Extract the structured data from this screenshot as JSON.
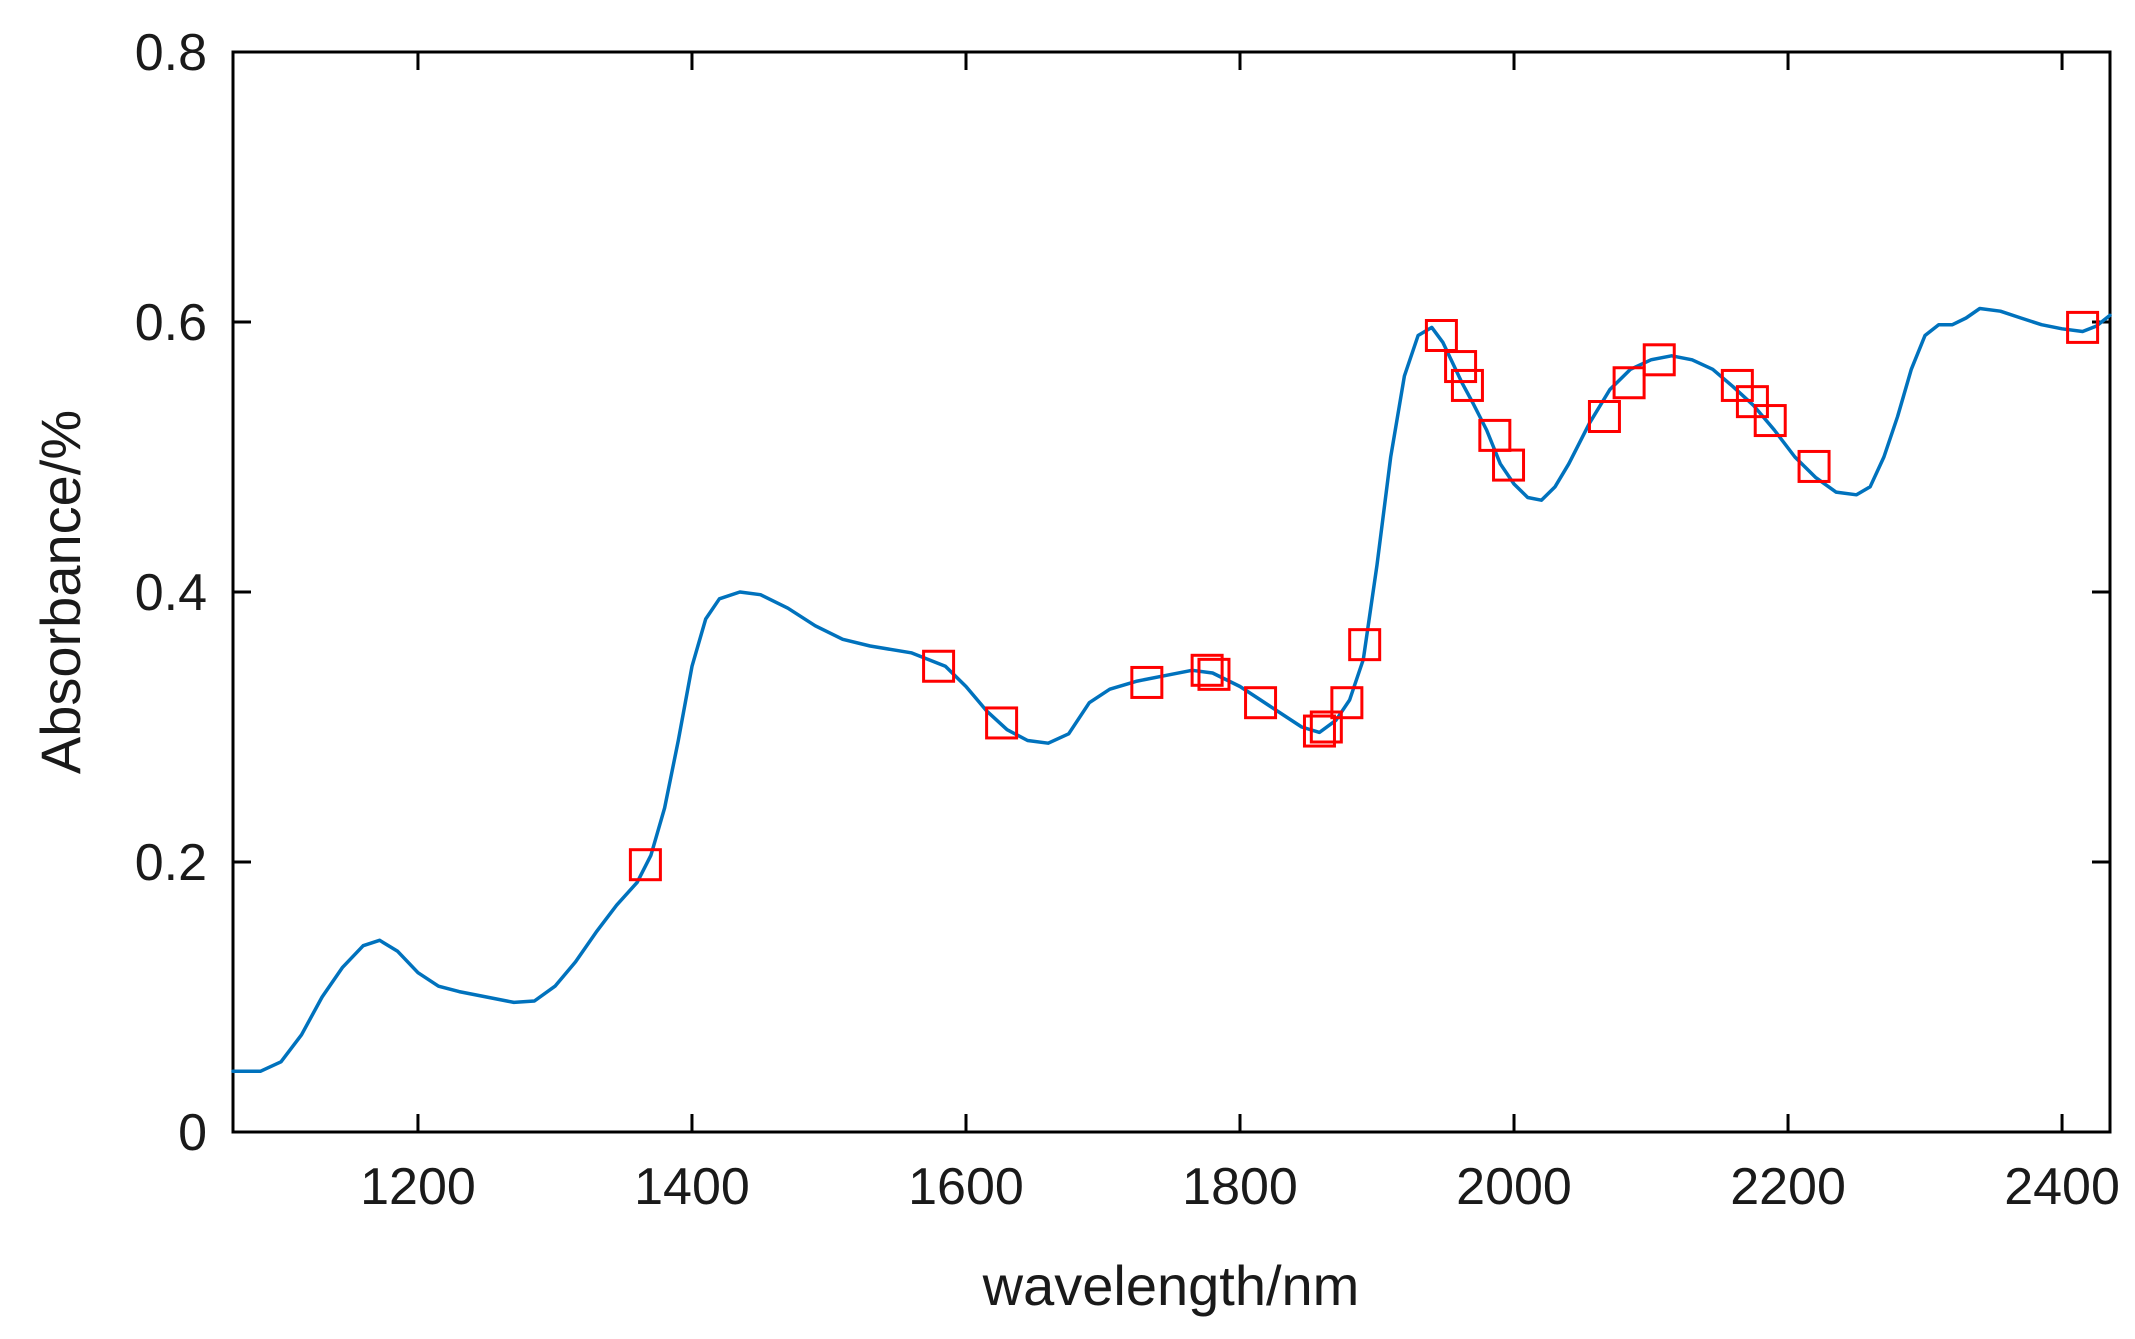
{
  "chart_data": {
    "type": "line",
    "xlabel": "wavelength/nm",
    "ylabel": "Absorbance/%",
    "xlim": [
      1065,
      2435
    ],
    "ylim": [
      0,
      0.8
    ],
    "x_ticks": [
      1200,
      1400,
      1600,
      1800,
      2000,
      2200,
      2400
    ],
    "x_tick_labels": [
      "1200",
      "1400",
      "1600",
      "1800",
      "2000",
      "2200",
      "2400"
    ],
    "y_ticks": [
      0,
      0.2,
      0.4,
      0.6,
      0.8
    ],
    "y_tick_labels": [
      "0",
      "0.2",
      "0.4",
      "0.6",
      "0.8"
    ],
    "grid": false,
    "colors": {
      "spectrum": "#0072BD",
      "markers": "#FF0000",
      "axes": "#000000"
    },
    "series": [
      {
        "type": "line",
        "x": [
          1065,
          1085,
          1100,
          1115,
          1130,
          1145,
          1160,
          1172,
          1185,
          1200,
          1215,
          1230,
          1250,
          1270,
          1285,
          1300,
          1315,
          1330,
          1345,
          1360,
          1370,
          1380,
          1390,
          1400,
          1410,
          1420,
          1435,
          1450,
          1470,
          1490,
          1510,
          1530,
          1560,
          1585,
          1600,
          1615,
          1630,
          1645,
          1660,
          1675,
          1690,
          1705,
          1725,
          1745,
          1765,
          1780,
          1800,
          1815,
          1830,
          1845,
          1858,
          1870,
          1880,
          1890,
          1900,
          1910,
          1920,
          1930,
          1940,
          1948,
          1955,
          1962,
          1970,
          1980,
          1990,
          2000,
          2010,
          2020,
          2030,
          2040,
          2055,
          2070,
          2085,
          2100,
          2115,
          2130,
          2145,
          2160,
          2175,
          2190,
          2205,
          2220,
          2235,
          2250,
          2260,
          2270,
          2280,
          2290,
          2300,
          2310,
          2320,
          2330,
          2340,
          2355,
          2370,
          2385,
          2400,
          2415,
          2425,
          2435
        ],
        "y": [
          0.045,
          0.045,
          0.052,
          0.072,
          0.1,
          0.122,
          0.138,
          0.142,
          0.134,
          0.118,
          0.108,
          0.104,
          0.1,
          0.096,
          0.097,
          0.108,
          0.126,
          0.148,
          0.168,
          0.185,
          0.205,
          0.24,
          0.29,
          0.345,
          0.38,
          0.395,
          0.4,
          0.398,
          0.388,
          0.375,
          0.365,
          0.36,
          0.355,
          0.345,
          0.33,
          0.312,
          0.298,
          0.29,
          0.288,
          0.295,
          0.318,
          0.328,
          0.334,
          0.338,
          0.342,
          0.34,
          0.33,
          0.32,
          0.31,
          0.3,
          0.296,
          0.305,
          0.32,
          0.35,
          0.42,
          0.5,
          0.56,
          0.59,
          0.596,
          0.585,
          0.57,
          0.555,
          0.54,
          0.52,
          0.495,
          0.48,
          0.47,
          0.468,
          0.478,
          0.495,
          0.525,
          0.55,
          0.565,
          0.572,
          0.575,
          0.572,
          0.565,
          0.552,
          0.538,
          0.52,
          0.5,
          0.485,
          0.474,
          0.472,
          0.478,
          0.5,
          0.53,
          0.565,
          0.59,
          0.598,
          0.598,
          0.603,
          0.61,
          0.608,
          0.603,
          0.598,
          0.595,
          0.593,
          0.597,
          0.605
        ]
      },
      {
        "type": "scatter",
        "marker": "square",
        "x": [
          1366,
          1580,
          1626,
          1732,
          1776,
          1781,
          1815,
          1858,
          1863,
          1878,
          1891,
          1947,
          1961,
          1966,
          1986,
          1996,
          2066,
          2084,
          2106,
          2163,
          2174,
          2187,
          2219,
          2415
        ],
        "y": [
          0.198,
          0.345,
          0.303,
          0.333,
          0.342,
          0.339,
          0.318,
          0.297,
          0.3,
          0.318,
          0.361,
          0.59,
          0.567,
          0.553,
          0.516,
          0.494,
          0.53,
          0.555,
          0.572,
          0.553,
          0.541,
          0.527,
          0.493,
          0.596
        ]
      }
    ]
  }
}
